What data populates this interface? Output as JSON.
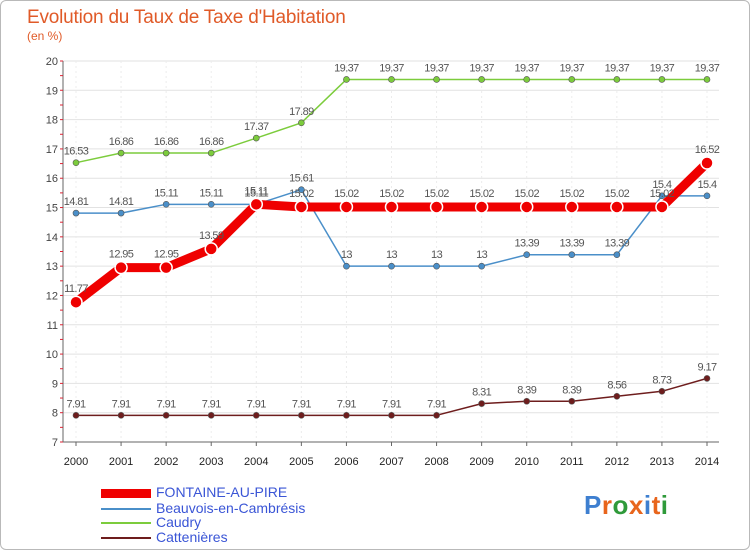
{
  "title": "Evolution du Taux de Taxe d'Habitation",
  "subtitle": "(en %)",
  "logo_text": "Proxiti",
  "chart_data": {
    "type": "line",
    "title": "Evolution du Taux de Taxe d'Habitation",
    "ylabel": "(en %)",
    "xlabel": "",
    "x": [
      2000,
      2001,
      2002,
      2003,
      2004,
      2005,
      2006,
      2007,
      2008,
      2009,
      2010,
      2011,
      2012,
      2013,
      2014
    ],
    "ylim": [
      7,
      20
    ],
    "yticks": [
      7,
      8,
      9,
      10,
      11,
      12,
      13,
      14,
      15,
      16,
      17,
      18,
      19,
      20
    ],
    "legend_position": "bottom-left",
    "series": [
      {
        "name": "Caudry",
        "color": "#7ccc3c",
        "values": [
          16.53,
          16.86,
          16.86,
          16.86,
          17.37,
          17.89,
          19.37,
          19.37,
          19.37,
          19.37,
          19.37,
          19.37,
          19.37,
          19.37,
          19.37
        ],
        "labels": [
          "16.53",
          "16.86",
          "16.86",
          "16.86",
          "17.37",
          "17.89",
          "19.37",
          "19.37",
          "19.37",
          "19.37",
          "19.37",
          "19.37",
          "19.37",
          "19.37",
          "19.37"
        ]
      },
      {
        "name": "Beauvois-en-Cambrésis",
        "color": "#4a8fc9",
        "values": [
          14.81,
          14.81,
          15.11,
          15.11,
          15.11,
          15.61,
          13,
          13,
          13,
          13,
          13.39,
          13.39,
          13.39,
          15.4,
          15.4
        ],
        "labels": [
          "14.81",
          "14.81",
          "15.11",
          "15.11",
          "15.11",
          "15.61",
          "13",
          "13",
          "13",
          "13",
          "13.39",
          "13.39",
          "13.39",
          "15.4",
          "15.4"
        ]
      },
      {
        "name": "Cattenières",
        "color": "#6e1d1d",
        "values": [
          7.91,
          7.91,
          7.91,
          7.91,
          7.91,
          7.91,
          7.91,
          7.91,
          7.91,
          8.31,
          8.39,
          8.39,
          8.56,
          8.73,
          9.17
        ],
        "labels": [
          "7.91",
          "7.91",
          "7.91",
          "7.91",
          "7.91",
          "7.91",
          "7.91",
          "7.91",
          "7.91",
          "8.31",
          "8.39",
          "8.39",
          "8.56",
          "8.73",
          "9.17"
        ]
      },
      {
        "name": "FONTAINE-AU-PIRE",
        "color": "#ef0000",
        "values": [
          11.77,
          12.95,
          12.95,
          13.59,
          15.11,
          15.02,
          15.02,
          15.02,
          15.02,
          15.02,
          15.02,
          15.02,
          15.02,
          15.02,
          16.52
        ],
        "labels": [
          "11.77",
          "12.95",
          "12.95",
          "13.59",
          "15.11",
          "15.02",
          "15.02",
          "15.02",
          "15.02",
          "15.02",
          "15.02",
          "15.02",
          "15.02",
          "15.02",
          "16.52"
        ]
      }
    ],
    "legend": [
      "FONTAINE-AU-PIRE",
      "Beauvois-en-Cambrésis",
      "Caudry",
      "Cattenières"
    ]
  }
}
